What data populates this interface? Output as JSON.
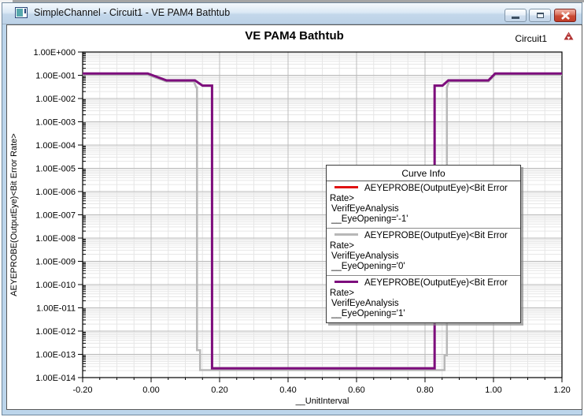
{
  "window": {
    "title": "SimpleChannel - Circuit1 - VE PAM4 Bathtub",
    "controls": {
      "minimize": "minimize",
      "maximize": "restore",
      "close": "close"
    }
  },
  "header": {
    "title": "VE PAM4 Bathtub",
    "context_label": "Circuit1"
  },
  "legend": {
    "title": "Curve Info",
    "entries": [
      {
        "color": "#e01212",
        "line1": "AEYEPROBE(OutputEye)<Bit Error Rate>",
        "line2": "VerifEyeAnalysis",
        "line3": "__EyeOpening='-1'"
      },
      {
        "color": "#b8b8b8",
        "line1": "AEYEPROBE(OutputEye)<Bit Error Rate>",
        "line2": "VerifEyeAnalysis",
        "line3": "__EyeOpening='0'"
      },
      {
        "color": "#7d0e7d",
        "line1": "AEYEPROBE(OutputEye)<Bit Error Rate>",
        "line2": "VerifEyeAnalysis",
        "line3": "__EyeOpening='1'"
      }
    ]
  },
  "chart_data": {
    "type": "line",
    "title": "VE PAM4 Bathtub",
    "xlabel": "__UnitInterval",
    "ylabel": "AEYEPROBE(OutputEye)<Bit Error Rate>",
    "xlim": [
      -0.2,
      1.2
    ],
    "ylim": [
      1e-14,
      1
    ],
    "y_scale": "log",
    "grid": true,
    "legend_position": "center-right",
    "x_ticks": [
      -0.2,
      0.0,
      0.2,
      0.4,
      0.6,
      0.8,
      1.0,
      1.2
    ],
    "x_tick_labels": [
      "-0.20",
      "0.00",
      "0.20",
      "0.40",
      "0.60",
      "0.80",
      "1.00",
      "1.20"
    ],
    "x_minor_step": 0.05,
    "y_tick_labels": [
      "1.00E+000",
      "1.00E-001",
      "1.00E-002",
      "1.00E-003",
      "1.00E-004",
      "1.00E-005",
      "1.00E-006",
      "1.00E-007",
      "1.00E-008",
      "1.00E-009",
      "1.00E-010",
      "1.00E-011",
      "1.00E-012",
      "1.00E-013",
      "1.00E-014"
    ],
    "colors": {
      "major_grid": "#bcbcbc",
      "minor_grid": "#e6e6e6",
      "axis_frame": "#000000"
    },
    "series": [
      {
        "name": "AEYEPROBE(OutputEye)<Bit Error Rate> __EyeOpening='-1'",
        "color": "#e01212",
        "width": 2.5,
        "points": [
          [
            -0.2,
            0.12
          ],
          [
            -0.01,
            0.12
          ],
          [
            0.045,
            0.06
          ],
          [
            0.128,
            0.06
          ],
          [
            0.15,
            0.036
          ],
          [
            0.178,
            0.036
          ],
          [
            0.178,
            2.5e-14
          ],
          [
            0.828,
            2.5e-14
          ],
          [
            0.828,
            0.036
          ],
          [
            0.851,
            0.036
          ],
          [
            0.868,
            0.06
          ],
          [
            0.985,
            0.06
          ],
          [
            1.005,
            0.12
          ],
          [
            1.2,
            0.12
          ]
        ]
      },
      {
        "name": "AEYEPROBE(OutputEye)<Bit Error Rate> __EyeOpening='0'",
        "color": "#b8b8b8",
        "width": 2.5,
        "points": [
          [
            -0.2,
            0.105
          ],
          [
            -0.01,
            0.105
          ],
          [
            0.045,
            0.054
          ],
          [
            0.125,
            0.054
          ],
          [
            0.132,
            0.03
          ],
          [
            0.134,
            0.03
          ],
          [
            0.134,
            1.5e-13
          ],
          [
            0.143,
            1.5e-13
          ],
          [
            0.143,
            2.1e-14
          ],
          [
            0.857,
            2.1e-14
          ],
          [
            0.857,
            9e-14
          ],
          [
            0.864,
            9e-14
          ],
          [
            0.864,
            0.03
          ],
          [
            0.87,
            0.054
          ],
          [
            0.985,
            0.054
          ],
          [
            1.005,
            0.105
          ],
          [
            1.2,
            0.105
          ]
        ]
      },
      {
        "name": "AEYEPROBE(OutputEye)<Bit Error Rate> __EyeOpening='1'",
        "color": "#7d0e7d",
        "width": 3,
        "points": [
          [
            -0.2,
            0.12
          ],
          [
            -0.01,
            0.12
          ],
          [
            0.045,
            0.06
          ],
          [
            0.128,
            0.06
          ],
          [
            0.15,
            0.036
          ],
          [
            0.178,
            0.036
          ],
          [
            0.178,
            2.5e-14
          ],
          [
            0.828,
            2.5e-14
          ],
          [
            0.828,
            0.036
          ],
          [
            0.851,
            0.036
          ],
          [
            0.868,
            0.06
          ],
          [
            0.985,
            0.06
          ],
          [
            1.005,
            0.12
          ],
          [
            1.2,
            0.12
          ]
        ]
      }
    ]
  }
}
